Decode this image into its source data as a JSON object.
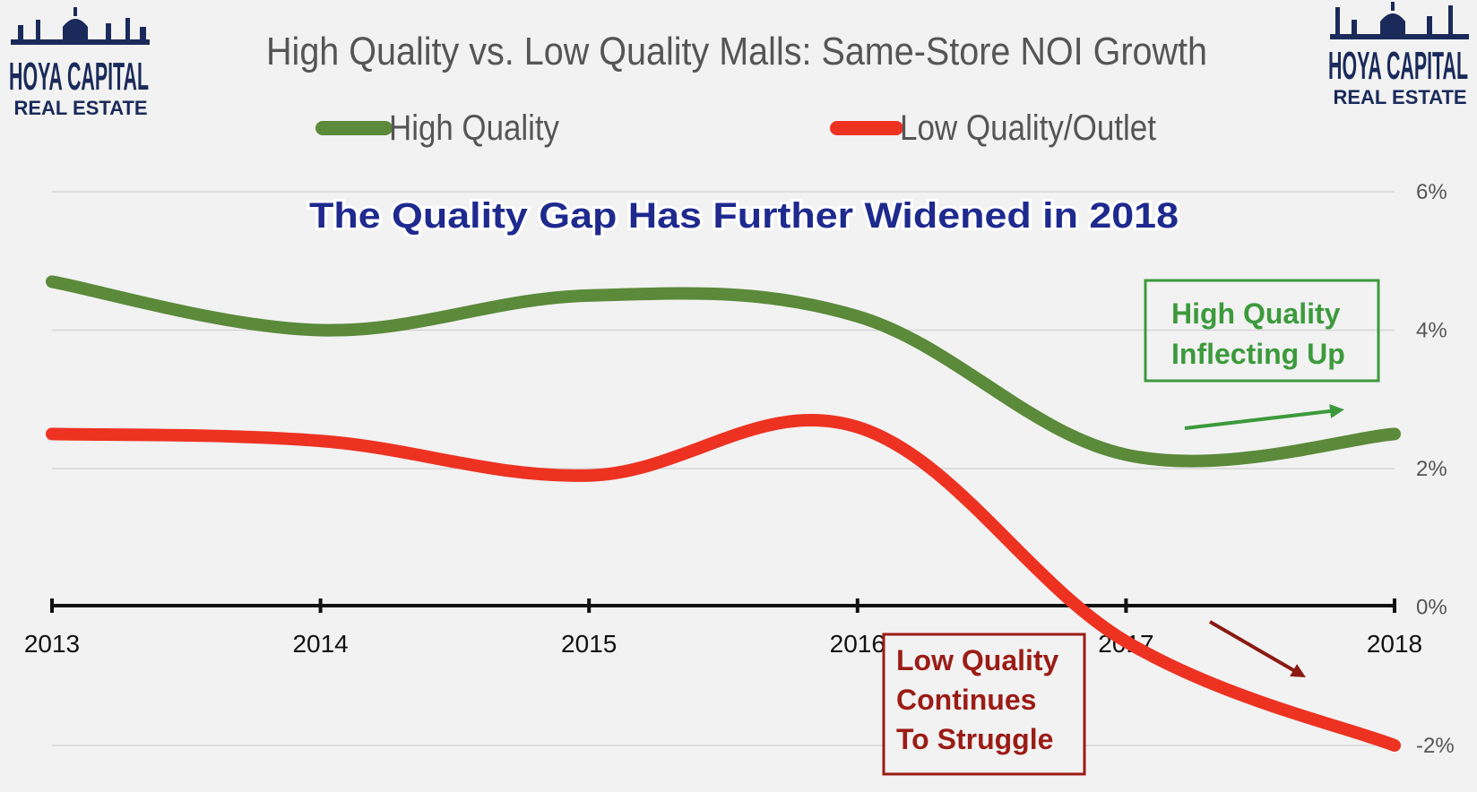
{
  "header": {
    "logo_left_line1": "HOYA CAPITAL",
    "logo_left_line2": "REAL ESTATE",
    "logo_right_line1": "HOYA CAPITAL",
    "logo_right_line2": "REAL ESTATE"
  },
  "colors": {
    "high_quality": "#5b8a3a",
    "low_quality": "#ee3222",
    "subtitle": "#1f2a8f",
    "annotation_green": "#3c9a3c",
    "annotation_red": "#9b1c16",
    "logo": "#1a2a5a"
  },
  "chart_data": {
    "type": "line",
    "title": "High Quality vs. Low Quality Malls: Same-Store NOI Growth",
    "subtitle": "The Quality Gap Has Further Widened in 2018",
    "x": [
      "2013",
      "2014",
      "2015",
      "2016",
      "2017",
      "2018"
    ],
    "ylim": [
      -2,
      6
    ],
    "yticks": [
      "-2%",
      "0%",
      "2%",
      "4%",
      "6%"
    ],
    "ytick_values": [
      -2,
      0,
      2,
      4,
      6
    ],
    "grid": true,
    "legend_position": "top",
    "series": [
      {
        "name": "High Quality",
        "values": [
          4.7,
          4.0,
          4.5,
          4.2,
          2.2,
          2.5
        ]
      },
      {
        "name": "Low Quality/Outlet",
        "values": [
          2.5,
          2.4,
          1.9,
          2.6,
          -0.5,
          -2.0
        ]
      }
    ],
    "annotations": [
      {
        "lines": [
          "High Quality",
          "Inflecting Up"
        ]
      },
      {
        "lines": [
          "Low Quality",
          "Continues",
          "To Struggle"
        ]
      }
    ]
  }
}
